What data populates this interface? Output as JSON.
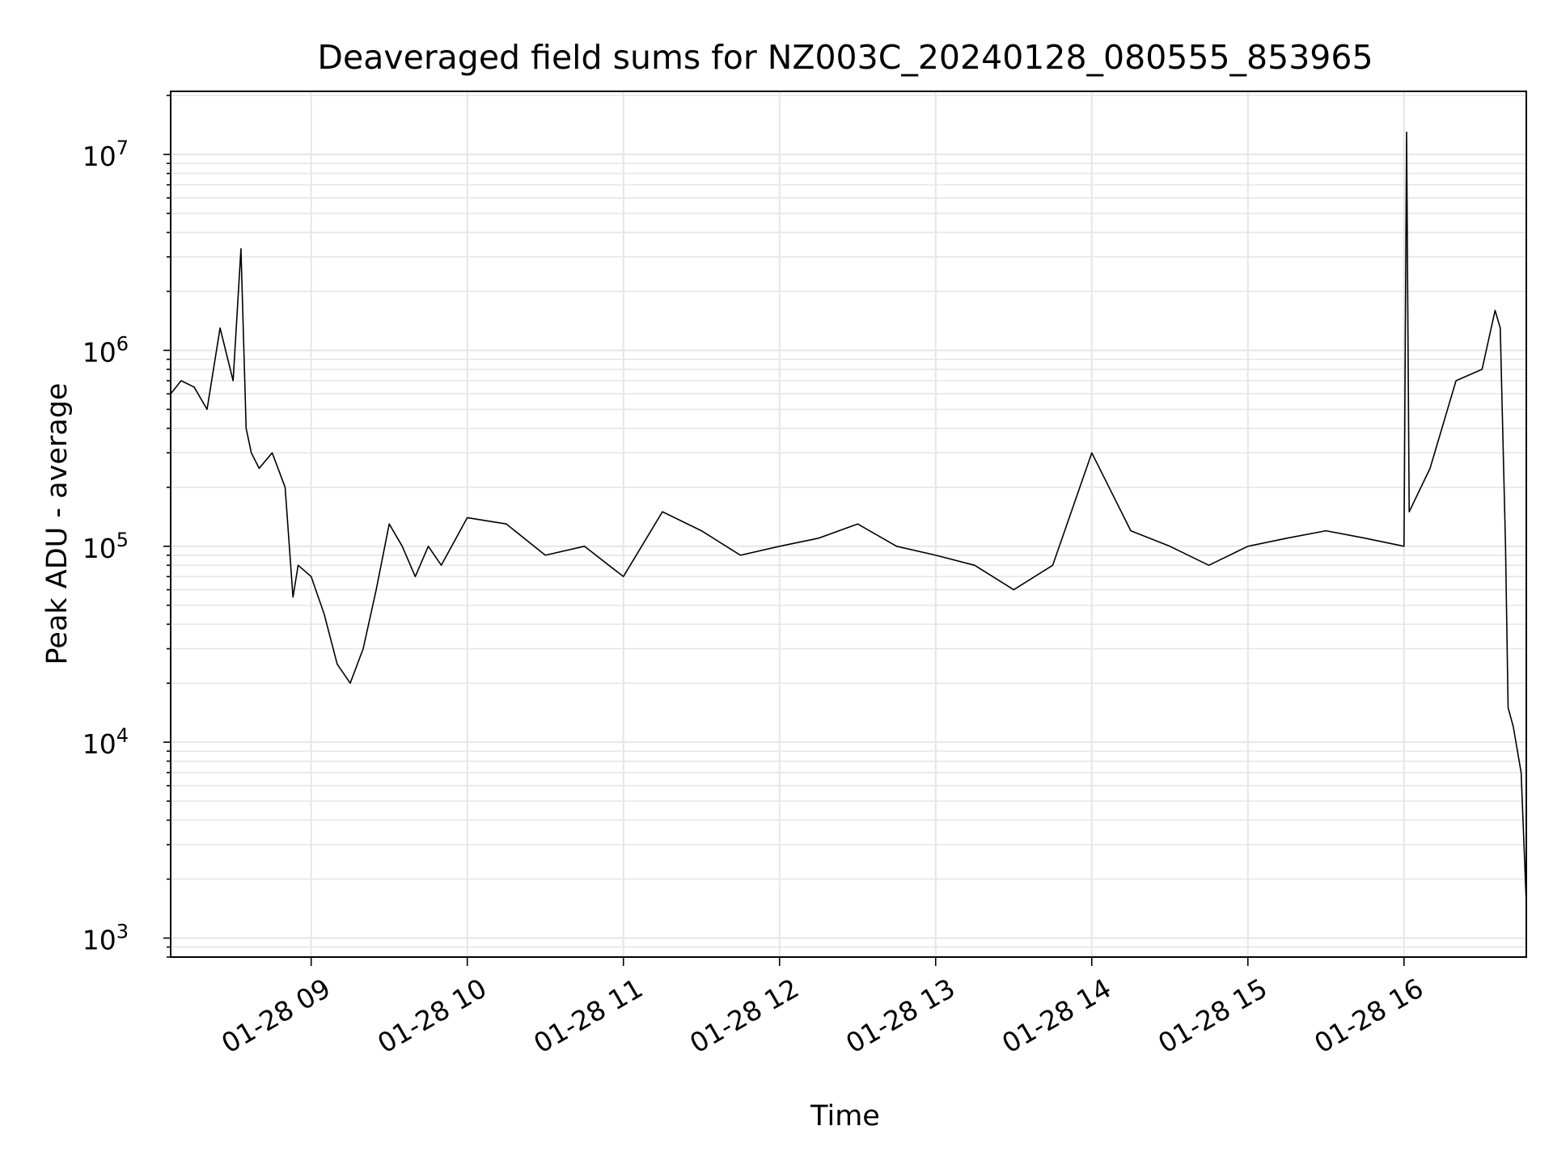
{
  "chart_data": {
    "type": "line",
    "title": "Deaveraged field sums for NZ003C_20240128_080555_853965",
    "xlabel": "Time",
    "ylabel": "Peak ADU - average",
    "x_axis": {
      "kind": "datetime",
      "range": [
        "2024-01-28 08:06",
        "2024-01-28 16:47"
      ],
      "ticks": [
        "01-28 09",
        "01-28 10",
        "01-28 11",
        "01-28 12",
        "01-28 13",
        "01-28 14",
        "01-28 15",
        "01-28 16"
      ],
      "tick_rotation_deg": 30
    },
    "y_axis": {
      "scale": "log",
      "range": [
        800,
        21000000
      ],
      "ticks": [
        {
          "value": 1000,
          "base": "10",
          "exp": "3"
        },
        {
          "value": 10000,
          "base": "10",
          "exp": "4"
        },
        {
          "value": 100000,
          "base": "10",
          "exp": "5"
        },
        {
          "value": 1000000,
          "base": "10",
          "exp": "6"
        },
        {
          "value": 10000000,
          "base": "10",
          "exp": "7"
        }
      ]
    },
    "grid": true,
    "legend": "none",
    "line_color": "#000000",
    "grid_color": "#e6e6e6",
    "series": [
      {
        "x": [
          "2024-01-28 08:06",
          "2024-01-28 08:10",
          "2024-01-28 08:15",
          "2024-01-28 08:20",
          "2024-01-28 08:25",
          "2024-01-28 08:30",
          "2024-01-28 08:33",
          "2024-01-28 08:35",
          "2024-01-28 08:37",
          "2024-01-28 08:40",
          "2024-01-28 08:45",
          "2024-01-28 08:50",
          "2024-01-28 08:53",
          "2024-01-28 08:55",
          "2024-01-28 09:00",
          "2024-01-28 09:05",
          "2024-01-28 09:10",
          "2024-01-28 09:15",
          "2024-01-28 09:20",
          "2024-01-28 09:25",
          "2024-01-28 09:30",
          "2024-01-28 09:35",
          "2024-01-28 09:40",
          "2024-01-28 09:45",
          "2024-01-28 09:50",
          "2024-01-28 10:00",
          "2024-01-28 10:15",
          "2024-01-28 10:30",
          "2024-01-28 10:45",
          "2024-01-28 11:00",
          "2024-01-28 11:15",
          "2024-01-28 11:30",
          "2024-01-28 11:45",
          "2024-01-28 12:00",
          "2024-01-28 12:15",
          "2024-01-28 12:30",
          "2024-01-28 12:45",
          "2024-01-28 13:00",
          "2024-01-28 13:15",
          "2024-01-28 13:30",
          "2024-01-28 13:45",
          "2024-01-28 14:00",
          "2024-01-28 14:15",
          "2024-01-28 14:30",
          "2024-01-28 14:45",
          "2024-01-28 15:00",
          "2024-01-28 15:15",
          "2024-01-28 15:30",
          "2024-01-28 15:45",
          "2024-01-28 16:00",
          "2024-01-28 16:01",
          "2024-01-28 16:02",
          "2024-01-28 16:10",
          "2024-01-28 16:20",
          "2024-01-28 16:30",
          "2024-01-28 16:35",
          "2024-01-28 16:37",
          "2024-01-28 16:39",
          "2024-01-28 16:40",
          "2024-01-28 16:42",
          "2024-01-28 16:45",
          "2024-01-28 16:47"
        ],
        "y": [
          600000,
          700000,
          650000,
          500000,
          1300000,
          700000,
          3300000,
          400000,
          300000,
          250000,
          300000,
          200000,
          55000,
          80000,
          70000,
          45000,
          25000,
          20000,
          30000,
          60000,
          130000,
          100000,
          70000,
          100000,
          80000,
          140000,
          130000,
          90000,
          100000,
          70000,
          150000,
          120000,
          90000,
          100000,
          110000,
          130000,
          100000,
          90000,
          80000,
          60000,
          80000,
          300000,
          120000,
          100000,
          80000,
          100000,
          110000,
          120000,
          110000,
          100000,
          13000000,
          150000,
          250000,
          700000,
          800000,
          1600000,
          1300000,
          100000,
          15000,
          12000,
          7000,
          1500
        ]
      }
    ]
  }
}
